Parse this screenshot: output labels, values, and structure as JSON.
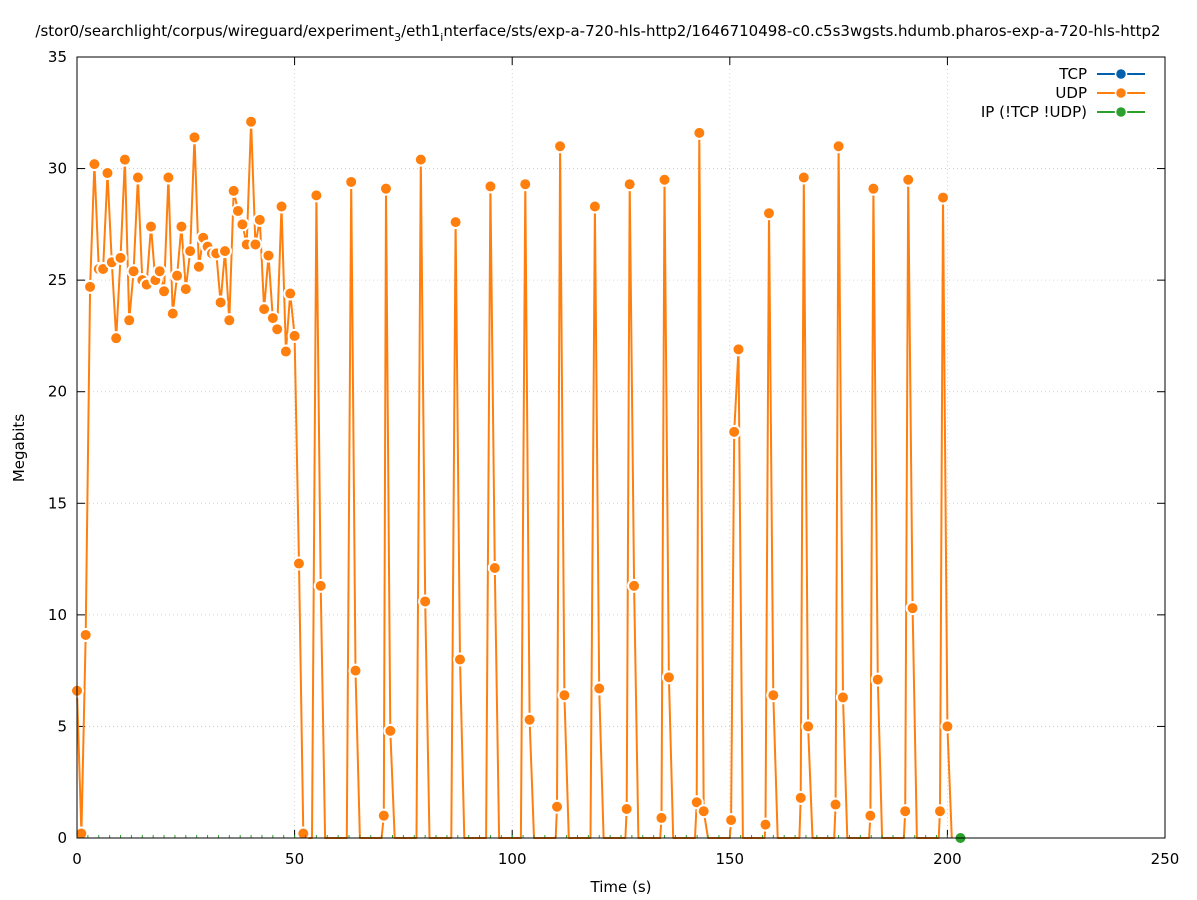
{
  "chart_data": {
    "type": "line",
    "title": "/stor0/searchlight/corpus/wireguard/experiment_3/eth1_interface/sts/exp-a-720-hls-http2/1646710498-c0.c5s3wgsts.hdumb.pharos-exp-a-720-hls-http2",
    "title_parts": {
      "p1": "/stor0/searchlight/corpus/wireguard/experiment",
      "sub1": "3",
      "p2": "/eth1",
      "sub2": "i",
      "p3": "nterface/sts/exp-a-720-hls-http2/1646710498-c0.c5s3wgsts.hdumb.pharos-exp-a-720-hls-http2"
    },
    "xlabel": "Time (s)",
    "ylabel": "Megabits",
    "xlim": [
      0,
      250
    ],
    "ylim": [
      0,
      35
    ],
    "xticks": [
      0,
      50,
      100,
      150,
      200,
      250
    ],
    "yticks": [
      0,
      5,
      10,
      15,
      20,
      25,
      30,
      35
    ],
    "grid": true,
    "legend_position": "top-right",
    "series": [
      {
        "name": "TCP",
        "color": "#0060ad",
        "points": []
      },
      {
        "name": "UDP",
        "color": "#ff7f0e",
        "points": [
          [
            0,
            6.6
          ],
          [
            1,
            0.2
          ],
          [
            2,
            9.1
          ],
          [
            3,
            24.7
          ],
          [
            4,
            30.2
          ],
          [
            5,
            25.5
          ],
          [
            6,
            25.5
          ],
          [
            7,
            29.8
          ],
          [
            8,
            25.8
          ],
          [
            9,
            22.4
          ],
          [
            10,
            26.0
          ],
          [
            11,
            30.4
          ],
          [
            12,
            23.2
          ],
          [
            13,
            25.4
          ],
          [
            14,
            29.6
          ],
          [
            15,
            25.0
          ],
          [
            16,
            24.8
          ],
          [
            17,
            27.4
          ],
          [
            18,
            25.0
          ],
          [
            19,
            25.4
          ],
          [
            20,
            24.5
          ],
          [
            21,
            29.6
          ],
          [
            22,
            23.5
          ],
          [
            23,
            25.2
          ],
          [
            24,
            27.4
          ],
          [
            25,
            24.6
          ],
          [
            26,
            26.3
          ],
          [
            27,
            31.4
          ],
          [
            28,
            25.6
          ],
          [
            29,
            26.9
          ],
          [
            30,
            26.5
          ],
          [
            31,
            26.2
          ],
          [
            32,
            26.2
          ],
          [
            33,
            24.0
          ],
          [
            34,
            26.3
          ],
          [
            35,
            23.2
          ],
          [
            36,
            29.0
          ],
          [
            37,
            28.1
          ],
          [
            38,
            27.5
          ],
          [
            39,
            26.6
          ],
          [
            40,
            32.1
          ],
          [
            41,
            26.6
          ],
          [
            42,
            27.7
          ],
          [
            43,
            23.7
          ],
          [
            44,
            26.1
          ],
          [
            45,
            23.3
          ],
          [
            46,
            22.8
          ],
          [
            47,
            28.3
          ],
          [
            48,
            21.8
          ],
          [
            49,
            24.4
          ],
          [
            50,
            22.5
          ],
          [
            51,
            12.3
          ],
          [
            52,
            0.2
          ],
          [
            53,
            0.0
          ],
          [
            54,
            0.0
          ],
          [
            55,
            28.8
          ],
          [
            56,
            11.3
          ],
          [
            57,
            0.0
          ],
          [
            62,
            0.0
          ],
          [
            63,
            29.4
          ],
          [
            64,
            7.5
          ],
          [
            65,
            0.0
          ],
          [
            70,
            0.0
          ],
          [
            70.5,
            1.0
          ],
          [
            71,
            29.1
          ],
          [
            72,
            4.8
          ],
          [
            73,
            0.0
          ],
          [
            78,
            0.0
          ],
          [
            79,
            30.4
          ],
          [
            80,
            10.6
          ],
          [
            81,
            0.0
          ],
          [
            86,
            0.0
          ],
          [
            87,
            27.6
          ],
          [
            88,
            8.0
          ],
          [
            89,
            0.0
          ],
          [
            94,
            0.0
          ],
          [
            95,
            29.2
          ],
          [
            96,
            12.1
          ],
          [
            97,
            0.0
          ],
          [
            102,
            0.0
          ],
          [
            103,
            29.3
          ],
          [
            104,
            5.3
          ],
          [
            105,
            0.0
          ],
          [
            110,
            0.0
          ],
          [
            110.3,
            1.4
          ],
          [
            111,
            31.0
          ],
          [
            112,
            6.4
          ],
          [
            113,
            0.0
          ],
          [
            118,
            0.0
          ],
          [
            119,
            28.3
          ],
          [
            120,
            6.7
          ],
          [
            121,
            0.0
          ],
          [
            126,
            0.0
          ],
          [
            126.3,
            1.3
          ],
          [
            127,
            29.3
          ],
          [
            128,
            11.3
          ],
          [
            129,
            0.0
          ],
          [
            134,
            0.0
          ],
          [
            134.3,
            0.9
          ],
          [
            135,
            29.5
          ],
          [
            136,
            7.2
          ],
          [
            137,
            0.0
          ],
          [
            142,
            0.0
          ],
          [
            142.4,
            1.6
          ],
          [
            143,
            31.6
          ],
          [
            144,
            1.2
          ],
          [
            145,
            0.0
          ],
          [
            150,
            0.0
          ],
          [
            150.3,
            0.8
          ],
          [
            151,
            18.2
          ],
          [
            152,
            21.9
          ],
          [
            153,
            0.0
          ],
          [
            158,
            0.0
          ],
          [
            158.2,
            0.6
          ],
          [
            159,
            28.0
          ],
          [
            160,
            6.4
          ],
          [
            161,
            0.0
          ],
          [
            166,
            0.0
          ],
          [
            166.3,
            1.8
          ],
          [
            167,
            29.6
          ],
          [
            168,
            5.0
          ],
          [
            169,
            0.0
          ],
          [
            174,
            0.0
          ],
          [
            174.3,
            1.5
          ],
          [
            175,
            31.0
          ],
          [
            176,
            6.3
          ],
          [
            177,
            0.0
          ],
          [
            182,
            0.0
          ],
          [
            182.3,
            1.0
          ],
          [
            183,
            29.1
          ],
          [
            184,
            7.1
          ],
          [
            185,
            0.0
          ],
          [
            190,
            0.0
          ],
          [
            190.3,
            1.2
          ],
          [
            191,
            29.5
          ],
          [
            192,
            10.3
          ],
          [
            193,
            0.0
          ],
          [
            198,
            0.0
          ],
          [
            198.3,
            1.2
          ],
          [
            199,
            28.7
          ],
          [
            200,
            5.0
          ],
          [
            201,
            0.0
          ]
        ]
      },
      {
        "name": "IP (!TCP  !UDP)",
        "color": "#2ca02c",
        "points": [
          [
            203,
            0.0
          ]
        ]
      }
    ]
  }
}
